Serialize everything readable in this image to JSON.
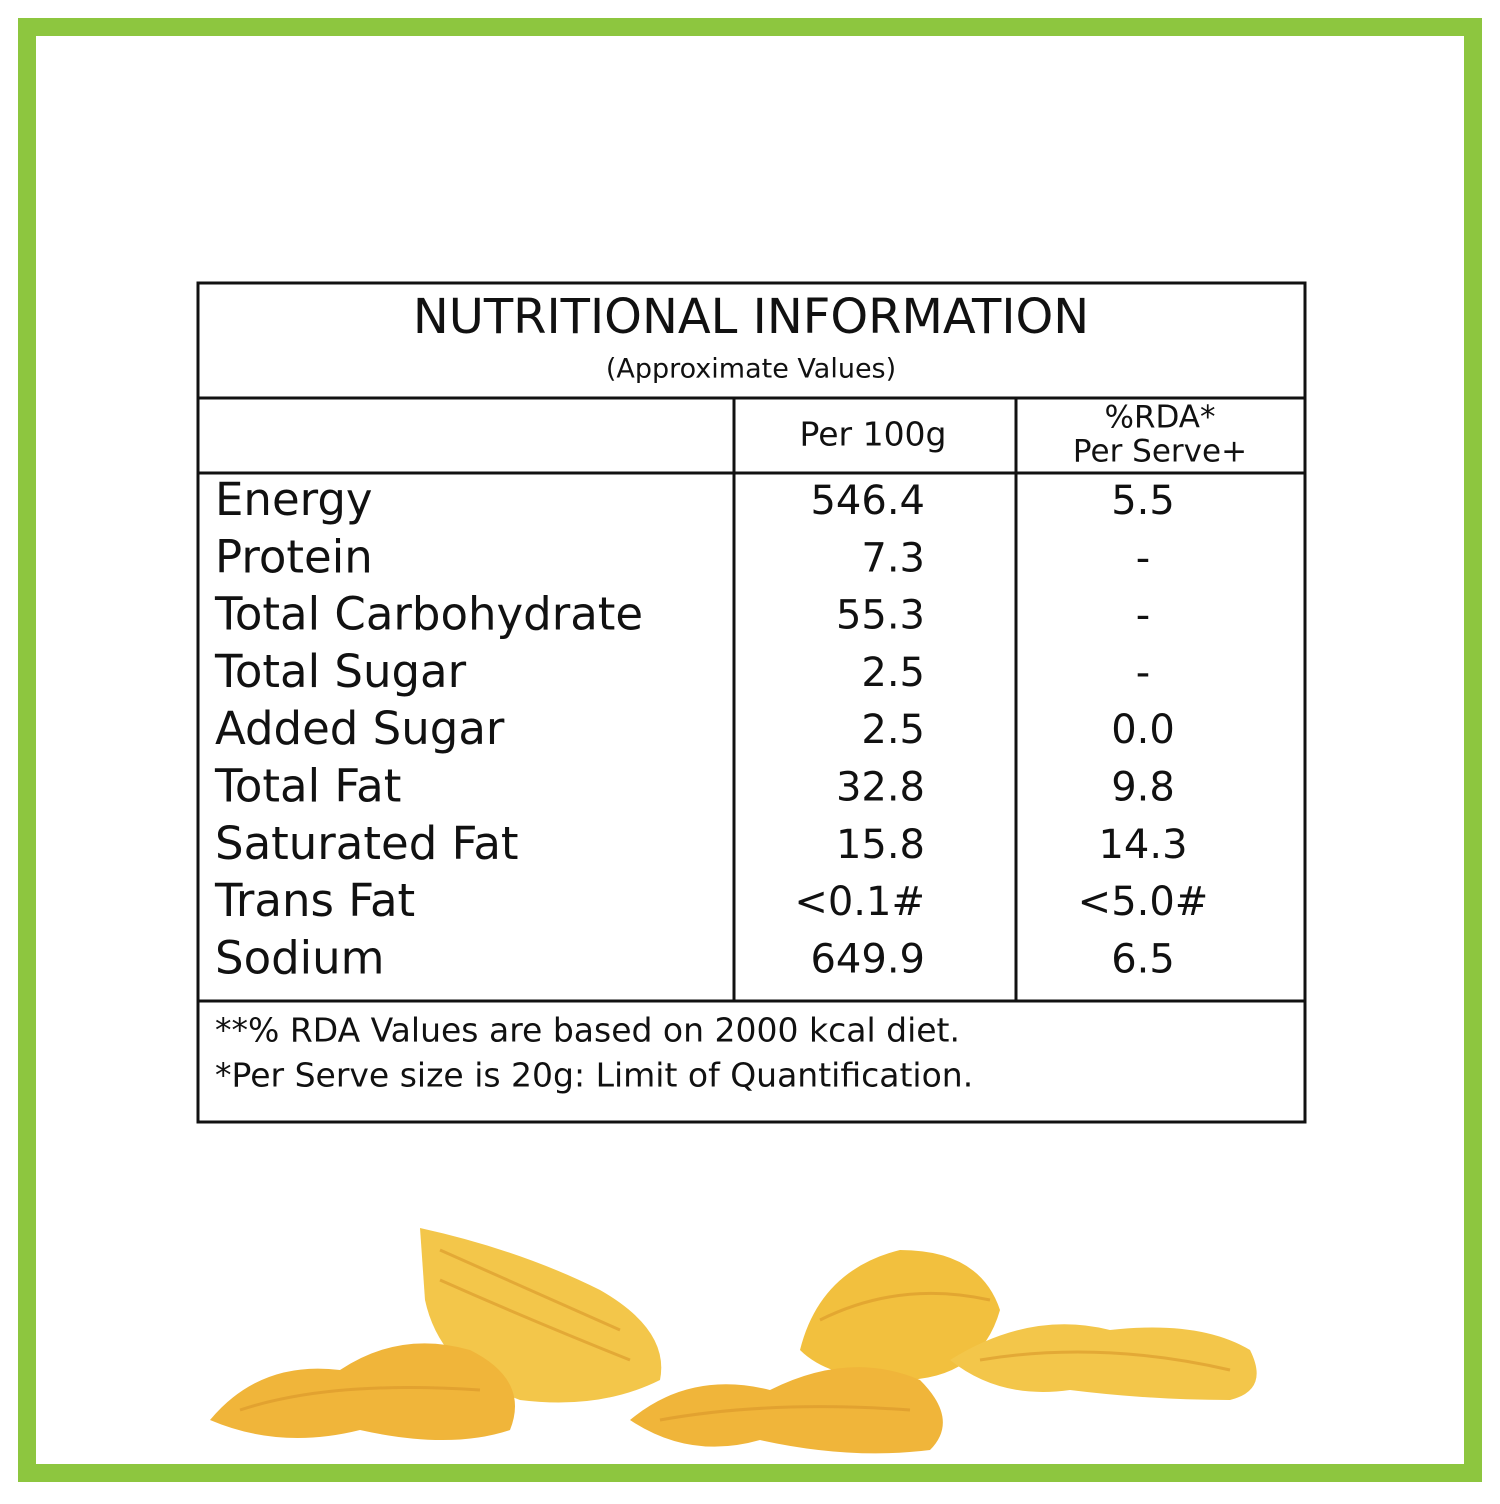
{
  "header": {
    "title": "NUTRITIONAL INFORMATION",
    "subtitle": "(Approximate Values)"
  },
  "table": {
    "columns": [
      "Per 100g",
      [
        "%RDA*",
        "Per Serve+"
      ]
    ],
    "rows": [
      [
        "Energy",
        "546.4",
        "5.5"
      ],
      [
        "Protein",
        "7.3",
        "-"
      ],
      [
        "Total Carbohydrate",
        "55.3",
        "-"
      ],
      [
        "Total Sugar",
        "2.5",
        "-"
      ],
      [
        "Added Sugar",
        "2.5",
        "0.0"
      ],
      [
        "Total Fat",
        "32.8",
        "9.8"
      ],
      [
        "Saturated Fat",
        "15.8",
        "14.3"
      ],
      [
        "Trans Fat",
        "<0.1#",
        "<5.0#"
      ],
      [
        "Sodium",
        "649.9",
        "6.5"
      ]
    ]
  },
  "notes": [
    "**% RDA Values are based on 2000 kcal diet.",
    "*Per Serve size is 20g: Limit of Quantification."
  ]
}
